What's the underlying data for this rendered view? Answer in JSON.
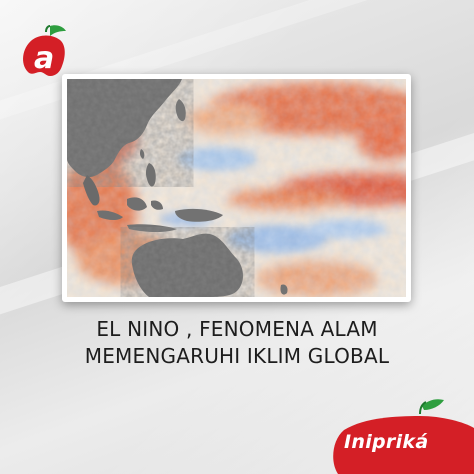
{
  "headline": {
    "line1": "EL NINO , FENOMENA ALAM",
    "line2": "MEMENGARUHI IKLIM GLOBAL"
  },
  "brand": {
    "name": "Inipriká",
    "accent_color": "#d41f26",
    "leaf_color": "#2e9e3f"
  },
  "image": {
    "subject": "sea-surface-temperature-map"
  }
}
